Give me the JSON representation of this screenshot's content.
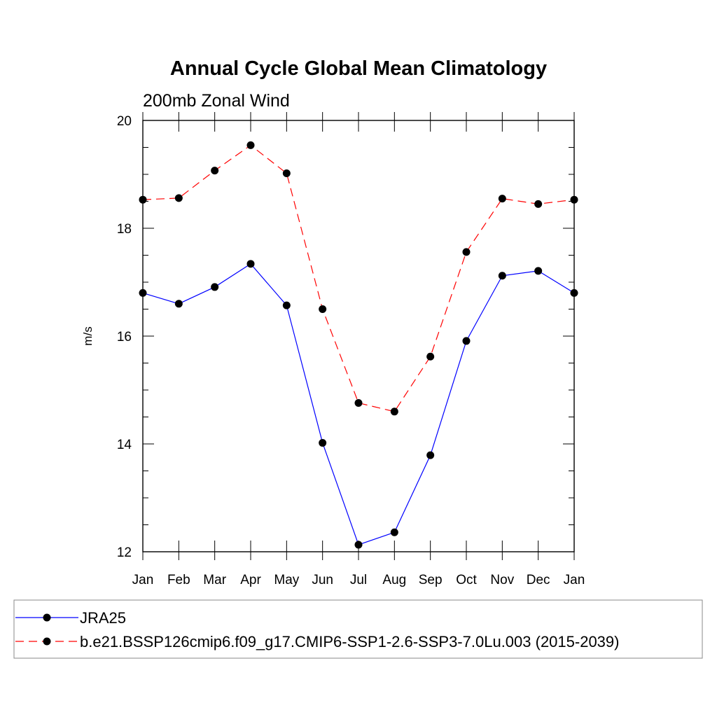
{
  "chart_data": {
    "type": "line",
    "title": "Annual Cycle Global Mean Climatology",
    "subtitle": "200mb Zonal Wind",
    "xlabel": "",
    "ylabel": "m/s",
    "ylim": [
      12,
      20
    ],
    "yticks": [
      "12",
      "14",
      "16",
      "18",
      "20"
    ],
    "categories": [
      "Jan",
      "Feb",
      "Mar",
      "Apr",
      "May",
      "Jun",
      "Jul",
      "Aug",
      "Sep",
      "Oct",
      "Nov",
      "Dec",
      "Jan"
    ],
    "grid": false,
    "legend_position": "bottom",
    "series": [
      {
        "name": "JRA25",
        "color": "#0000ff",
        "line_style": "solid",
        "marker": "filled-circle",
        "values": [
          16.8,
          16.6,
          16.91,
          17.34,
          16.57,
          14.02,
          12.13,
          12.36,
          13.79,
          15.91,
          17.12,
          17.21,
          16.8
        ]
      },
      {
        "name": "b.e21.BSSP126cmip6.f09_g17.CMIP6-SSP1-2.6-SSP3-7.0Lu.003 (2015-2039)",
        "color": "#ff0000",
        "line_style": "dashed",
        "marker": "filled-circle",
        "values": [
          18.53,
          18.56,
          19.07,
          19.54,
          19.02,
          16.5,
          14.76,
          14.6,
          15.62,
          17.56,
          18.55,
          18.45,
          18.53
        ]
      }
    ]
  }
}
